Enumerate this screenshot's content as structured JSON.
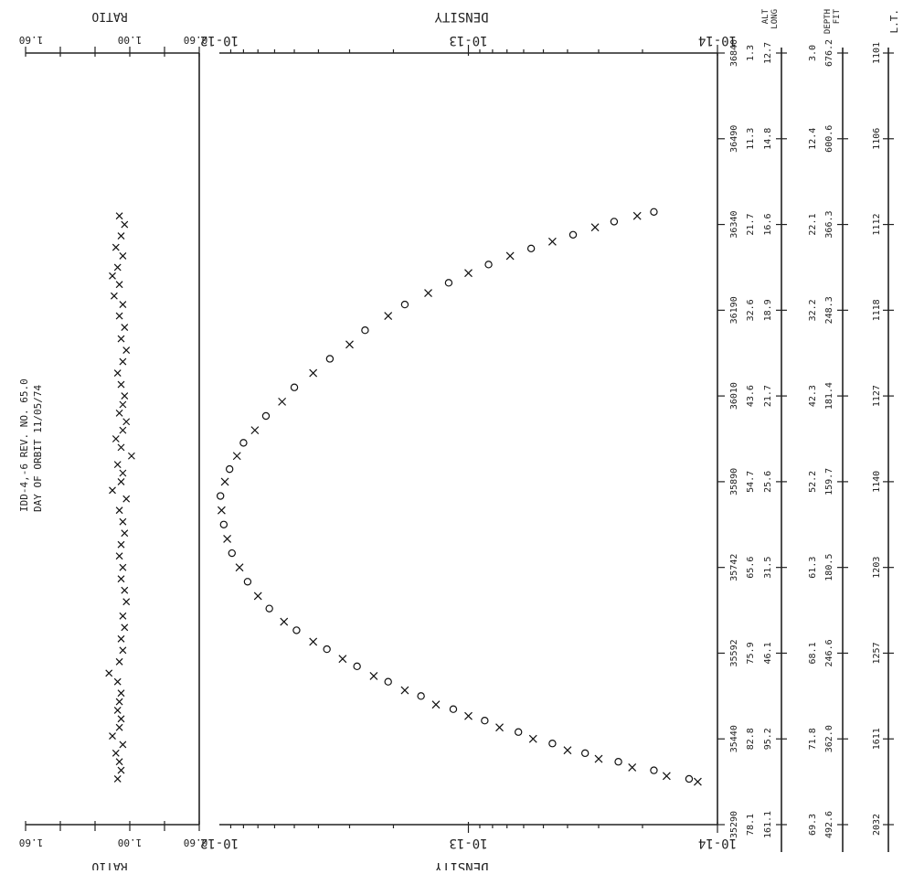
{
  "header": {
    "id_line": "IDD-4,-6   REV. NO. 65.0",
    "day_line": "DAY OF ORBIT   11/05/74"
  },
  "density_axis": {
    "label": "DENSITY",
    "tick_labels": [
      "10-14",
      "10-13",
      "10-12"
    ]
  },
  "ratio_axis": {
    "label": "RATIO",
    "tick_labels": [
      "0.60",
      "1.00",
      "1.60"
    ]
  },
  "row_headers": {
    "time": "L.T.",
    "alt": "ALT",
    "lat": "LAT",
    "long": "LONG",
    "geom": "DEPTH",
    "fit": "FIT"
  },
  "rows": [
    {
      "time": "36840",
      "alt": "1.3",
      "lon": "12.7",
      "dep": "3.0",
      "dep2": "676.2",
      "lt": "1101"
    },
    {
      "time": "36490",
      "alt": "11.3",
      "lon": "14.8",
      "dep": "12.4",
      "dep2": "600.6",
      "lt": "1106"
    },
    {
      "time": "36340",
      "alt": "21.7",
      "lon": "16.6",
      "dep": "22.1",
      "dep2": "366.3",
      "lt": "1112"
    },
    {
      "time": "36190",
      "alt": "32.6",
      "lon": "18.9",
      "dep": "32.2",
      "dep2": "248.3",
      "lt": "1118"
    },
    {
      "time": "36010",
      "alt": "43.6",
      "lon": "21.7",
      "dep": "42.3",
      "dep2": "181.4",
      "lt": "1127"
    },
    {
      "time": "35890",
      "alt": "54.7",
      "lon": "25.6",
      "dep": "52.2",
      "dep2": "159.7",
      "lt": "1140"
    },
    {
      "time": "35742",
      "alt": "65.6",
      "lon": "31.5",
      "dep": "61.3",
      "dep2": "180.5",
      "lt": "1203"
    },
    {
      "time": "35592",
      "alt": "75.9",
      "lon": "46.1",
      "dep": "68.1",
      "dep2": "246.6",
      "lt": "1257"
    },
    {
      "time": "35440",
      "alt": "82.8",
      "lon": "95.2",
      "dep": "71.8",
      "dep2": "362.0",
      "lt": "1611"
    },
    {
      "time": "35290",
      "alt": "78.1",
      "lon": "161.1",
      "dep": "69.3",
      "dep2": "492.6",
      "lt": "2032"
    }
  ],
  "chart_data": [
    {
      "type": "scatter",
      "title": "",
      "xlabel": "DENSITY",
      "xscale": "log",
      "xlim": [
        1e-14,
        1e-12
      ],
      "ylim": [
        35290,
        36640
      ],
      "ylabel": "",
      "series": [
        {
          "marker": "x",
          "points": [
            [
              1.2e-14,
              35365
            ],
            [
              1.6e-14,
              35375
            ],
            [
              2.2e-14,
              35390
            ],
            [
              3e-14,
              35405
            ],
            [
              4e-14,
              35420
            ],
            [
              5.5e-14,
              35440
            ],
            [
              7.5e-14,
              35460
            ],
            [
              1e-13,
              35480
            ],
            [
              1.35e-13,
              35500
            ],
            [
              1.8e-13,
              35525
            ],
            [
              2.4e-13,
              35550
            ],
            [
              3.2e-13,
              35580
            ],
            [
              4.2e-13,
              35610
            ],
            [
              5.5e-13,
              35645
            ],
            [
              7e-13,
              35690
            ],
            [
              8.3e-13,
              35740
            ],
            [
              9.3e-13,
              35790
            ],
            [
              9.8e-13,
              35840
            ],
            [
              9.5e-13,
              35890
            ],
            [
              8.5e-13,
              35935
            ],
            [
              7.2e-13,
              35980
            ],
            [
              5.6e-13,
              36030
            ],
            [
              4.2e-13,
              36080
            ],
            [
              3e-13,
              36130
            ],
            [
              2.1e-13,
              36180
            ],
            [
              1.45e-13,
              36220
            ],
            [
              1e-13,
              36255
            ],
            [
              6.8e-14,
              36285
            ],
            [
              4.6e-14,
              36310
            ],
            [
              3.1e-14,
              36335
            ],
            [
              2.1e-14,
              36355
            ]
          ]
        },
        {
          "marker": "o",
          "points": [
            [
              1.3e-14,
              35370
            ],
            [
              1.8e-14,
              35385
            ],
            [
              2.5e-14,
              35400
            ],
            [
              3.4e-14,
              35415
            ],
            [
              4.6e-14,
              35432
            ],
            [
              6.3e-14,
              35452
            ],
            [
              8.6e-14,
              35472
            ],
            [
              1.15e-13,
              35492
            ],
            [
              1.55e-13,
              35515
            ],
            [
              2.1e-13,
              35540
            ],
            [
              2.8e-13,
              35567
            ],
            [
              3.7e-13,
              35597
            ],
            [
              4.9e-13,
              35630
            ],
            [
              6.3e-13,
              35668
            ],
            [
              7.7e-13,
              35715
            ],
            [
              8.9e-13,
              35765
            ],
            [
              9.6e-13,
              35815
            ],
            [
              9.9e-13,
              35865
            ],
            [
              9.1e-13,
              35912
            ],
            [
              8e-13,
              35958
            ],
            [
              6.5e-13,
              36005
            ],
            [
              5e-13,
              36055
            ],
            [
              3.6e-13,
              36105
            ],
            [
              2.6e-13,
              36155
            ],
            [
              1.8e-13,
              36200
            ],
            [
              1.2e-13,
              36238
            ],
            [
              8.3e-14,
              36270
            ],
            [
              5.6e-14,
              36298
            ],
            [
              3.8e-14,
              36322
            ],
            [
              2.6e-14,
              36345
            ],
            [
              1.8e-14,
              36362
            ]
          ]
        }
      ]
    },
    {
      "type": "scatter",
      "title": "",
      "xlabel": "RATIO",
      "xlim": [
        0.6,
        1.6
      ],
      "ylim": [
        35290,
        36640
      ],
      "ylabel": "",
      "series": [
        {
          "marker": "x",
          "points": [
            [
              1.07,
              35370
            ],
            [
              1.05,
              35385
            ],
            [
              1.06,
              35400
            ],
            [
              1.08,
              35415
            ],
            [
              1.04,
              35430
            ],
            [
              1.1,
              35445
            ],
            [
              1.06,
              35460
            ],
            [
              1.05,
              35475
            ],
            [
              1.07,
              35490
            ],
            [
              1.06,
              35505
            ],
            [
              1.05,
              35520
            ],
            [
              1.07,
              35540
            ],
            [
              1.12,
              35555
            ],
            [
              1.06,
              35575
            ],
            [
              1.04,
              35595
            ],
            [
              1.05,
              35615
            ],
            [
              1.03,
              35635
            ],
            [
              1.04,
              35655
            ],
            [
              1.02,
              35680
            ],
            [
              1.03,
              35700
            ],
            [
              1.05,
              35720
            ],
            [
              1.04,
              35740
            ],
            [
              1.06,
              35760
            ],
            [
              1.05,
              35780
            ],
            [
              1.03,
              35800
            ],
            [
              1.04,
              35820
            ],
            [
              1.06,
              35840
            ],
            [
              1.02,
              35860
            ],
            [
              1.1,
              35875
            ],
            [
              1.05,
              35890
            ],
            [
              1.04,
              35905
            ],
            [
              1.07,
              35920
            ],
            [
              0.99,
              35935
            ],
            [
              1.05,
              35950
            ],
            [
              1.08,
              35965
            ],
            [
              1.04,
              35980
            ],
            [
              1.02,
              35995
            ],
            [
              1.06,
              36010
            ],
            [
              1.04,
              36025
            ],
            [
              1.03,
              36040
            ],
            [
              1.05,
              36060
            ],
            [
              1.07,
              36080
            ],
            [
              1.04,
              36100
            ],
            [
              1.02,
              36120
            ],
            [
              1.05,
              36140
            ],
            [
              1.03,
              36160
            ],
            [
              1.06,
              36180
            ],
            [
              1.04,
              36200
            ],
            [
              1.09,
              36215
            ],
            [
              1.06,
              36235
            ],
            [
              1.1,
              36250
            ],
            [
              1.07,
              36265
            ],
            [
              1.04,
              36285
            ],
            [
              1.08,
              36300
            ],
            [
              1.05,
              36320
            ],
            [
              1.03,
              36340
            ],
            [
              1.06,
              36355
            ]
          ]
        }
      ]
    }
  ]
}
